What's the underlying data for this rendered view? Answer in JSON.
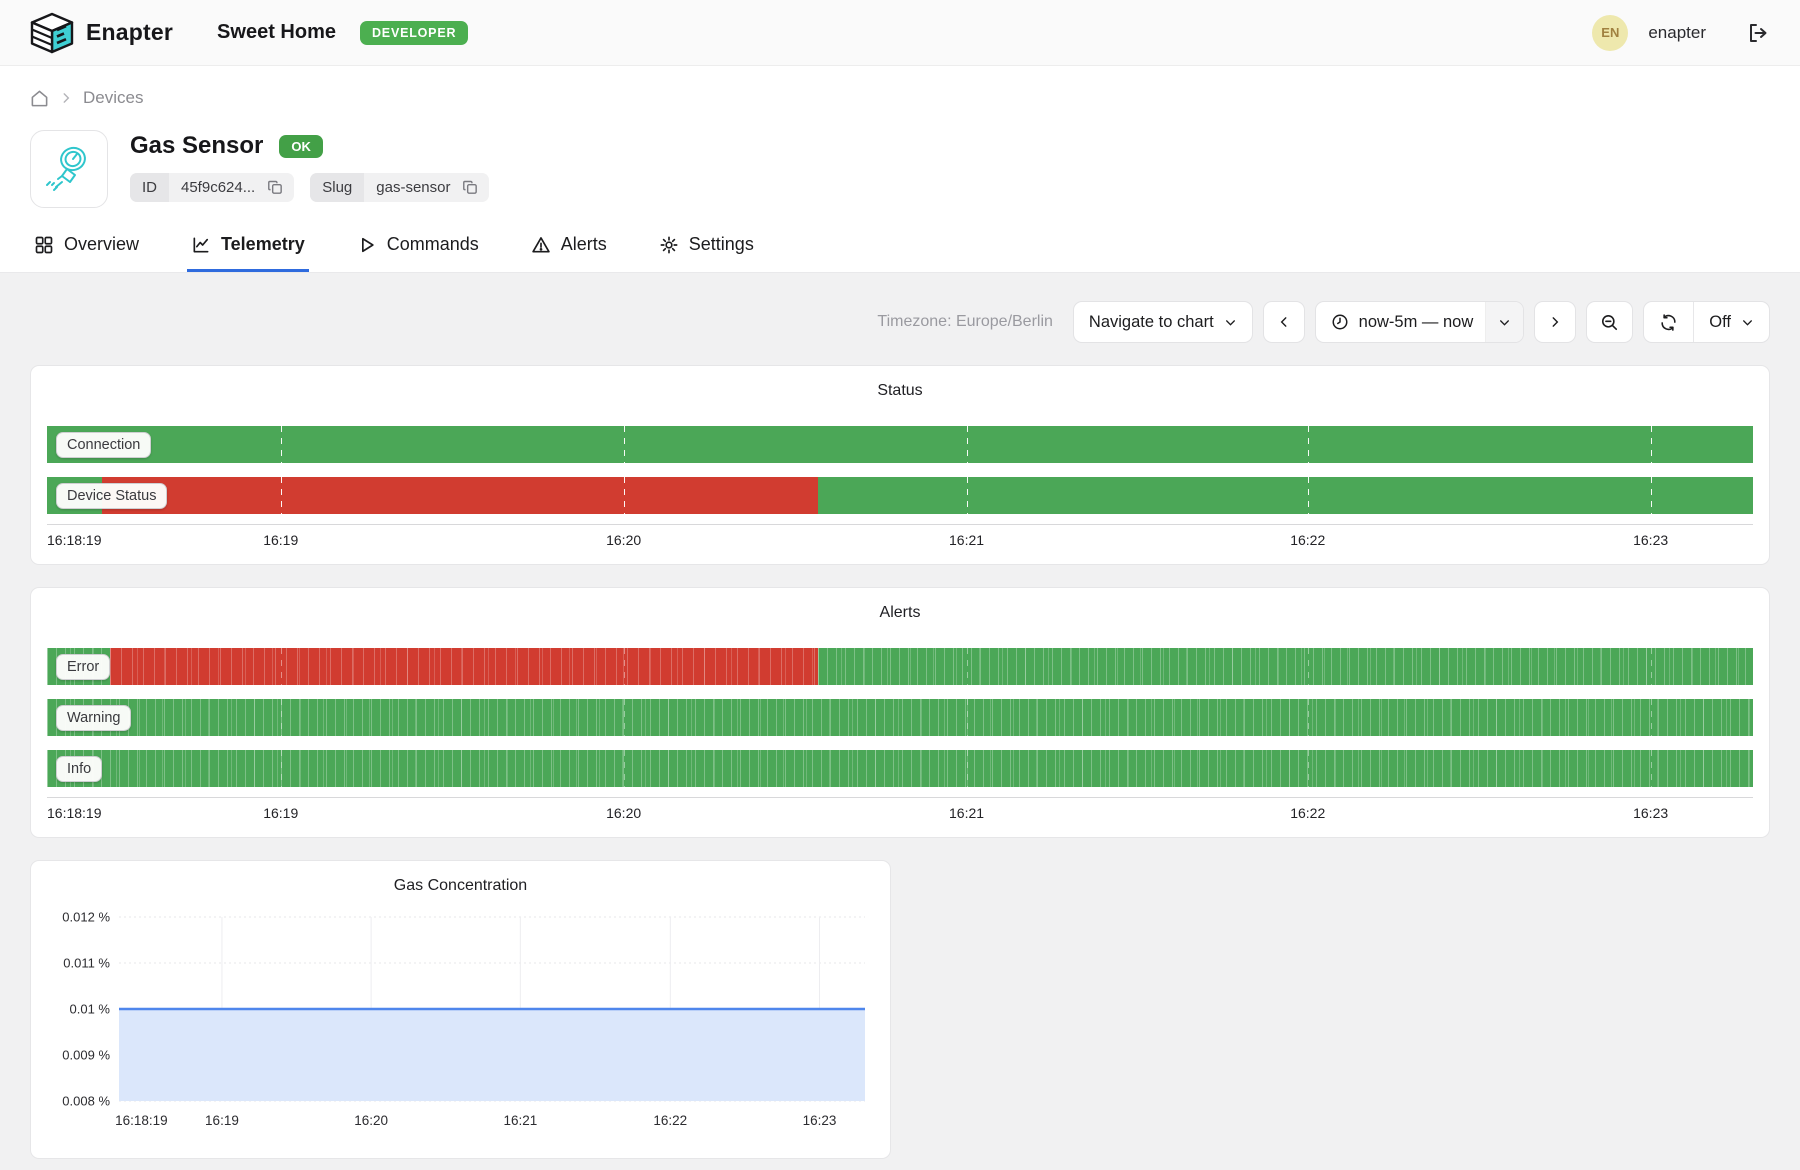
{
  "header": {
    "brand": "Enapter",
    "site_name": "Sweet Home",
    "role_badge": "DEVELOPER",
    "avatar_initials": "EN",
    "username": "enapter"
  },
  "breadcrumb": {
    "devices": "Devices"
  },
  "device": {
    "name": "Gas Sensor",
    "status_badge": "OK",
    "id_label": "ID",
    "id_value": "45f9c624...",
    "slug_label": "Slug",
    "slug_value": "gas-sensor"
  },
  "tabs": [
    {
      "label": "Overview",
      "active": false
    },
    {
      "label": "Telemetry",
      "active": true
    },
    {
      "label": "Commands",
      "active": false
    },
    {
      "label": "Alerts",
      "active": false
    },
    {
      "label": "Settings",
      "active": false
    }
  ],
  "toolbar": {
    "timezone": "Timezone: Europe/Berlin",
    "navigate_label": "Navigate to chart",
    "time_range": "now-5m — now",
    "refresh_off_label": "Off"
  },
  "colors": {
    "ok_green": "#4ba757",
    "error_red": "#d13c30",
    "badge_green": "#43a047",
    "accent_blue": "#2f6bde",
    "line_blue": "#4e86ec",
    "area_fill": "#dbe7fb",
    "teal_icon": "#2fc6cc"
  },
  "chart_data": [
    {
      "type": "bar",
      "subtype": "state-timeline",
      "title": "Status",
      "x_ticks": [
        "16:18:19",
        "16:19",
        "16:20",
        "16:21",
        "16:22",
        "16:23"
      ],
      "tick_pos_pct": [
        0,
        13.7,
        33.8,
        53.9,
        73.9,
        94.0
      ],
      "grid_pos_pct": [
        13.7,
        33.8,
        53.9,
        73.9,
        94.0
      ],
      "striped": false,
      "rows": [
        {
          "label": "Connection",
          "segments": [
            {
              "state": "ok",
              "pct": 100
            }
          ]
        },
        {
          "label": "Device Status",
          "segments": [
            {
              "state": "ok",
              "pct": 3.2
            },
            {
              "state": "error",
              "pct": 42.0
            },
            {
              "state": "ok",
              "pct": 54.8
            }
          ]
        }
      ]
    },
    {
      "type": "bar",
      "subtype": "state-timeline",
      "title": "Alerts",
      "x_ticks": [
        "16:18:19",
        "16:19",
        "16:20",
        "16:21",
        "16:22",
        "16:23"
      ],
      "tick_pos_pct": [
        0,
        13.7,
        33.8,
        53.9,
        73.9,
        94.0
      ],
      "grid_pos_pct": [
        13.7,
        33.8,
        53.9,
        73.9,
        94.0
      ],
      "striped": true,
      "rows": [
        {
          "label": "Error",
          "segments": [
            {
              "state": "ok",
              "pct": 3.7
            },
            {
              "state": "error",
              "pct": 41.5
            },
            {
              "state": "ok",
              "pct": 54.8
            }
          ]
        },
        {
          "label": "Warning",
          "segments": [
            {
              "state": "ok",
              "pct": 100
            }
          ]
        },
        {
          "label": "Info",
          "segments": [
            {
              "state": "ok",
              "pct": 100
            }
          ]
        }
      ]
    },
    {
      "type": "line",
      "title": "Gas Concentration",
      "x_ticks": [
        "16:18:19",
        "16:19",
        "16:20",
        "16:21",
        "16:22",
        "16:23"
      ],
      "tick_pos_pct": [
        3,
        13.8,
        33.8,
        53.8,
        73.9,
        93.9
      ],
      "y_ticks": [
        "0.012 %",
        "0.011 %",
        "0.01 %",
        "0.009 %",
        "0.008 %"
      ],
      "ylim": [
        0.008,
        0.012
      ],
      "series": [
        {
          "name": "Gas Concentration",
          "values": [
            0.01,
            0.01,
            0.01,
            0.01,
            0.01,
            0.01
          ]
        }
      ],
      "grid": true,
      "legend": "none"
    }
  ]
}
